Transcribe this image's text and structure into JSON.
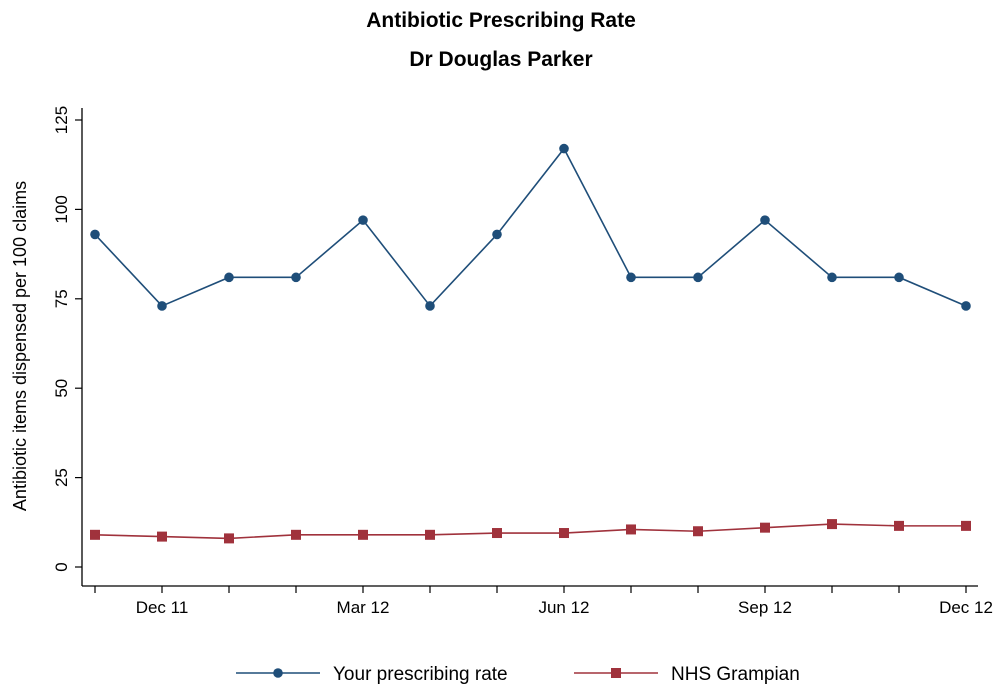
{
  "chart_data": {
    "type": "line",
    "title": "Antibiotic Prescribing Rate",
    "subtitle": "Dr Douglas Parker",
    "xlabel": "",
    "ylabel": "Antibiotic items dispensed per 100 claims",
    "ylim": [
      0,
      125
    ],
    "yticks": [
      0,
      25,
      50,
      75,
      100,
      125
    ],
    "x_tick_labels": [
      {
        "index": 1,
        "label": "Dec 11"
      },
      {
        "index": 4,
        "label": "Mar 12"
      },
      {
        "index": 7,
        "label": "Jun 12"
      },
      {
        "index": 10,
        "label": "Sep 12"
      },
      {
        "index": 13,
        "label": "Dec 12"
      }
    ],
    "x_count": 14,
    "grid": false,
    "legend_position": "bottom",
    "series": [
      {
        "name": "Your prescribing rate",
        "color": "#1f4e79",
        "marker": "circle",
        "values": [
          93,
          73,
          81,
          81,
          97,
          73,
          93,
          117,
          81,
          81,
          97,
          81,
          81,
          73
        ]
      },
      {
        "name": "NHS Grampian",
        "color": "#a0323c",
        "marker": "square",
        "values": [
          9,
          8.5,
          8,
          9,
          9,
          9,
          9.5,
          9.5,
          10.5,
          10,
          11,
          12,
          11.5,
          11.5
        ]
      }
    ]
  }
}
